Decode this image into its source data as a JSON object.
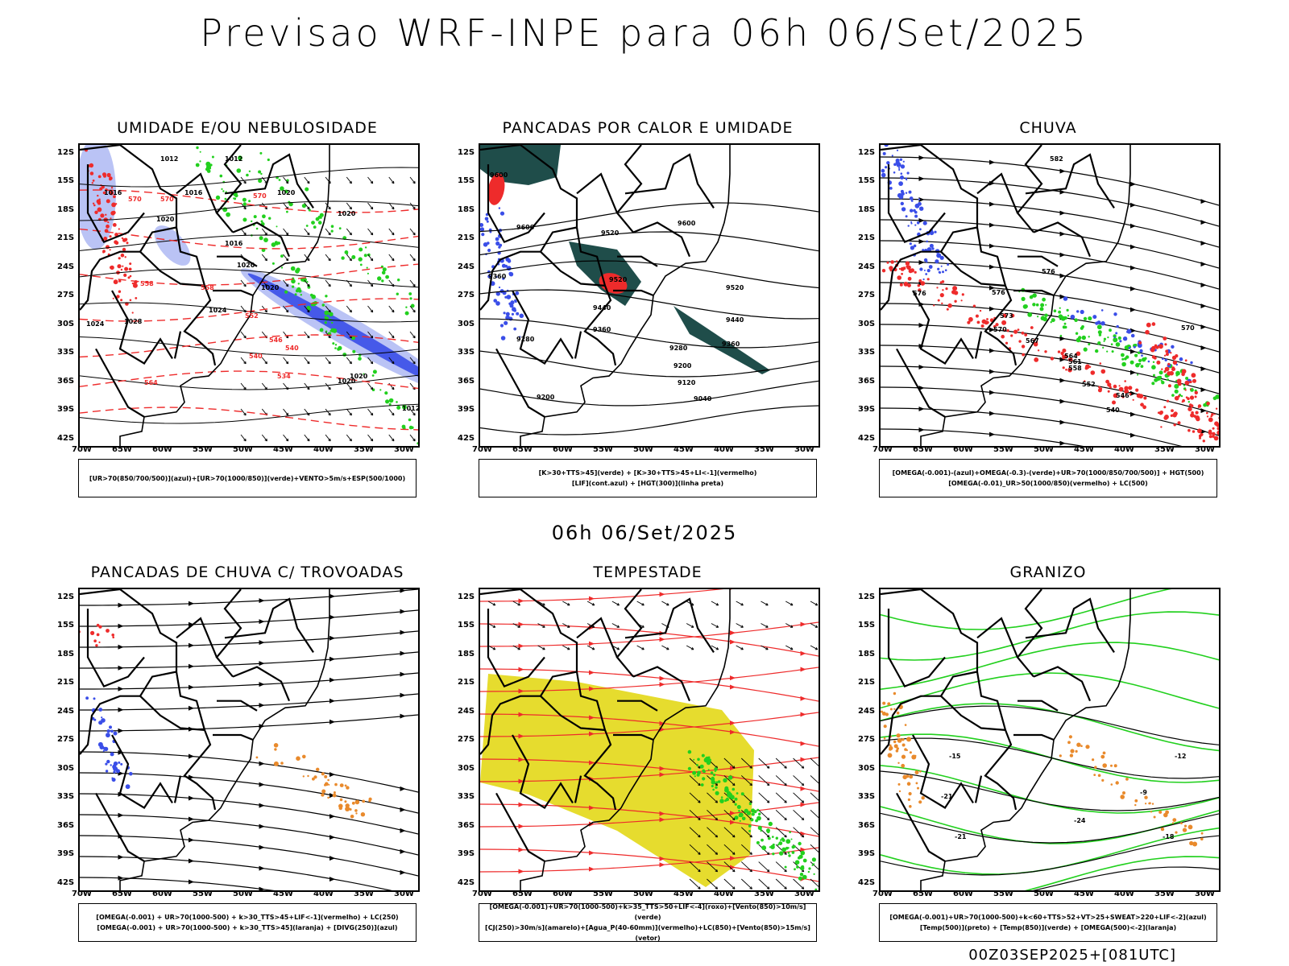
{
  "title": "Previsao WRF-INPE  para 06h 06/Set/2025",
  "mid_title": "06h 06/Set/2025",
  "footer": "00Z03SEP2025+[081UTC]",
  "lat_ticks": [
    "12S",
    "15S",
    "18S",
    "21S",
    "24S",
    "27S",
    "30S",
    "33S",
    "36S",
    "39S",
    "42S"
  ],
  "lon_ticks": [
    "70W",
    "65W",
    "60W",
    "55W",
    "50W",
    "45W",
    "40W",
    "35W",
    "30W"
  ],
  "colors": {
    "blue": "#3a4ee8",
    "light_blue": "#a9b4f2",
    "green": "#22d01e",
    "red": "#ee2b2b",
    "dark_teal": "#1f4d4a",
    "yellow": "#e6dc2e",
    "orange": "#e98a2c"
  },
  "panels": [
    {
      "id": "umidade",
      "title": "UMIDADE E/OU NEBULOSIDADE",
      "legend": [
        "[UR>70(850/700/500)](azul)+[UR>70(1000/850)](verde)+VENTO>5m/s+ESP(500/1000)"
      ],
      "labels": [
        "1012",
        "1012",
        "1016",
        "1016",
        "1020",
        "1020",
        "1016",
        "1020",
        "1020",
        "1024",
        "1028",
        "1024",
        "1020",
        "1020",
        "1020",
        "1012",
        "570",
        "570",
        "570",
        "558",
        "558",
        "552",
        "546",
        "540",
        "534",
        "540",
        "564"
      ]
    },
    {
      "id": "pancadas-calor",
      "title": "PANCADAS POR CALOR E UMIDADE",
      "legend": [
        "[K>30+TTS>45](verde) + [K>30+TTS>45+LI<-1](vermelho)",
        "[LIF](cont.azul) + [HGT(300)](linha preta)"
      ],
      "labels": [
        "9600",
        "9520",
        "9600",
        "9600",
        "9520",
        "9520",
        "9440",
        "9360",
        "9360",
        "9440",
        "9280",
        "9280",
        "9360",
        "9200",
        "9120",
        "9040",
        "9200"
      ]
    },
    {
      "id": "chuva",
      "title": "CHUVA",
      "legend": [
        "[OMEGA(-0.001)-(azul)+OMEGA(-0.3)-(verde)+UR>70(1000/850/700/500)] + HGT(500)",
        "[OMEGA(-0.01)_UR>50(1000/850)(vermelho) + LC(500)"
      ],
      "labels": [
        "582",
        "576",
        "576",
        "573",
        "570",
        "567",
        "564",
        "561",
        "558",
        "552",
        "546",
        "540",
        "576",
        "570"
      ]
    },
    {
      "id": "pancadas-trovoadas",
      "title": "PANCADAS DE CHUVA C/ TROVOADAS",
      "legend": [
        "[OMEGA(-0.001) + UR>70(1000-500) + k>30_TTS>45+LIF<-1](vermelho) + LC(250)",
        "[OMEGA(-0.001) + UR>70(1000-500) + k>30_TTS>45](laranja) + [DIVG(250)](azul)"
      ],
      "labels": []
    },
    {
      "id": "tempestade",
      "title": "TEMPESTADE",
      "legend": [
        "[OMEGA(-0.001)+UR>70(1000-500)+k>35_TTS>50+LIF<-4](roxo)+[Vento(850)>10m/s](verde)",
        "[CJ(250)>30m/s](amarelo)+[Agua_P(40-60mm)](vermelho)+LC(850)+[Vento(850)>15m/s](vetor)"
      ],
      "labels": []
    },
    {
      "id": "granizo",
      "title": "GRANIZO",
      "legend": [
        "[OMEGA(-0.001)+UR>70(1000-500)+k<60+TTS>52+VT>25+SWEAT>220+LIF<-2](azul)",
        "[Temp(500)](preto) + [Temp(850)](verde) + [OMEGA(500)<-2](laranja)"
      ],
      "labels": [
        "-15",
        "-12",
        "-21",
        "-24",
        "-18",
        "-21",
        "-9"
      ]
    }
  ]
}
